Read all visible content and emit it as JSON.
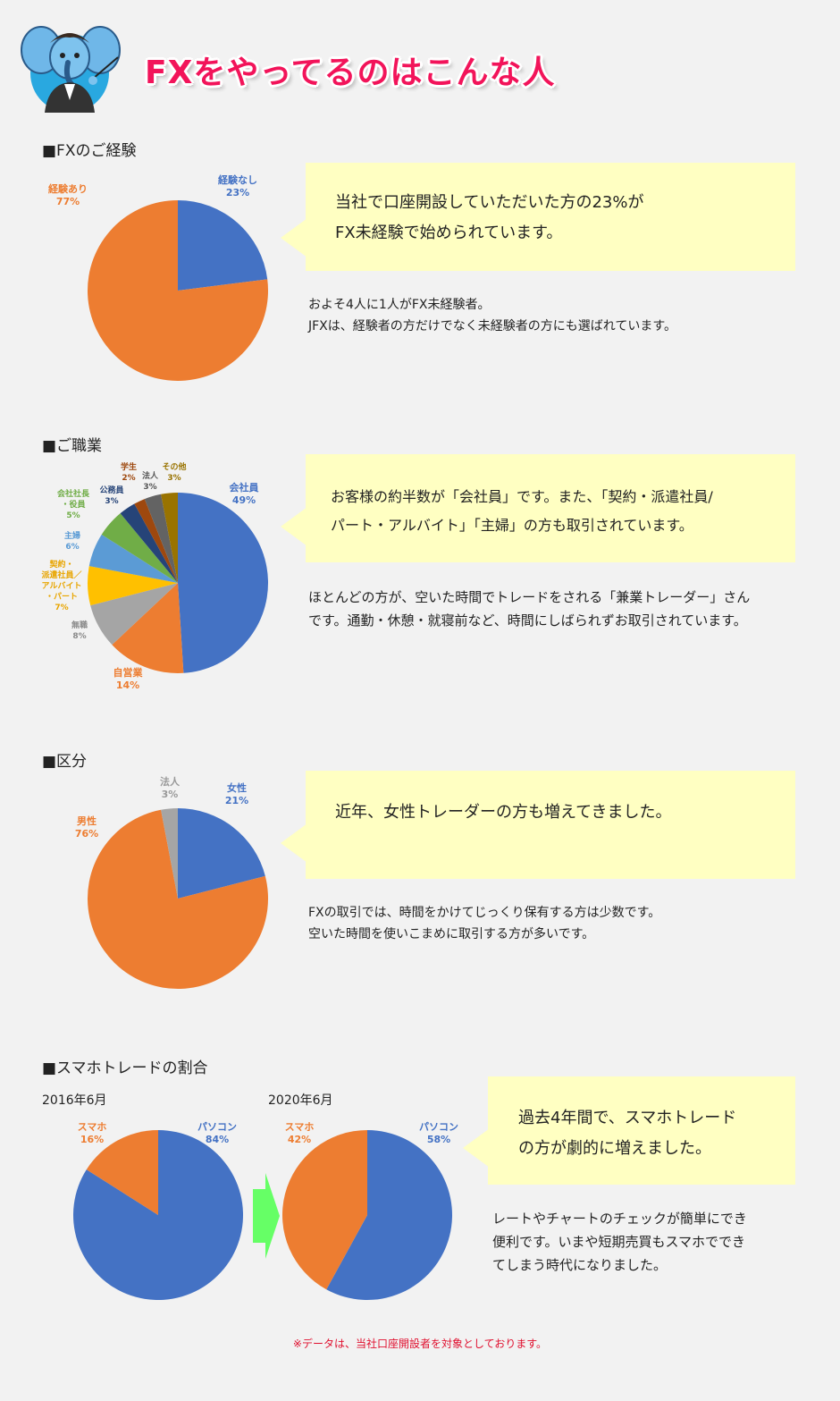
{
  "page": {
    "title": "FXをやってるのはこんな人",
    "footnote": "※データは、当社口座開設者を対象としております。"
  },
  "colors": {
    "blue": "#4472c4",
    "orange": "#ed7d31",
    "gray": "#a5a5a5",
    "yellow": "#ffc000",
    "lightblue": "#5b9bd5",
    "green": "#70ad47",
    "navy": "#264478",
    "brown": "#9e480e",
    "darkgray": "#636363",
    "olive": "#997300",
    "callout": "#ffffc2",
    "arrow": "#66ff66"
  },
  "sections": {
    "experience": {
      "heading": "■FXのご経験",
      "callout": [
        "当社で口座開設していただいた方の23%が",
        "FX未経験で始められています。"
      ],
      "body": [
        "およそ4人に1人がFX未経験者。",
        "JFXは、経験者の方だけでなく未経験者の方にも選ばれています。"
      ]
    },
    "occupation": {
      "heading": "■ご職業",
      "callout": [
        "お客様の約半数が「会社員」です。また、「契約・派遣社員/",
        "パート・アルバイト」「主婦」の方も取引されています。"
      ],
      "body": [
        "ほとんどの方が、空いた時間でトレードをされる「兼業トレーダー」さん",
        "です。通勤・休憩・就寝前など、時間にしばられずお取引されています。"
      ]
    },
    "category": {
      "heading": "■区分",
      "callout": [
        "近年、女性トレーダーの方も増えてきました。"
      ],
      "body": [
        "FXの取引では、時間をかけてじっくり保有する方は少数です。",
        "空いた時間を使いこまめに取引する方が多いです。"
      ]
    },
    "smartphone": {
      "heading": "■スマホトレードの割合",
      "callout": [
        "過去4年間で、スマホトレード",
        "の方が劇的に増えました。"
      ],
      "body": [
        "レートやチャートのチェックが簡単にでき",
        "便利です。いまや短期売買もスマホででき",
        "てしまう時代になりました。"
      ]
    }
  },
  "chart_data": [
    {
      "type": "pie",
      "title": "",
      "slices": [
        {
          "label": "経験なし",
          "value": 23,
          "pct": "23%",
          "color": "#4472c4"
        },
        {
          "label": "経験あり",
          "value": 77,
          "pct": "77%",
          "color": "#ed7d31"
        }
      ]
    },
    {
      "type": "pie",
      "title": "",
      "slices": [
        {
          "label": "会社員",
          "value": 49,
          "pct": "49%",
          "color": "#4472c4"
        },
        {
          "label": "自営業",
          "value": 14,
          "pct": "14%",
          "color": "#ed7d31"
        },
        {
          "label": "無職",
          "value": 8,
          "pct": "8%",
          "color": "#a5a5a5"
        },
        {
          "label": "契約・派遣社員／アルバイト・パート",
          "value": 7,
          "pct": "7%",
          "color": "#ffc000"
        },
        {
          "label": "主婦",
          "value": 6,
          "pct": "6%",
          "color": "#5b9bd5"
        },
        {
          "label": "会社社長・役員",
          "value": 5,
          "pct": "5%",
          "color": "#70ad47"
        },
        {
          "label": "公務員",
          "value": 3,
          "pct": "3%",
          "color": "#264478"
        },
        {
          "label": "学生",
          "value": 2,
          "pct": "2%",
          "color": "#9e480e"
        },
        {
          "label": "法人",
          "value": 3,
          "pct": "3%",
          "color": "#636363"
        },
        {
          "label": "その他",
          "value": 3,
          "pct": "3%",
          "color": "#997300"
        }
      ]
    },
    {
      "type": "pie",
      "title": "",
      "slices": [
        {
          "label": "女性",
          "value": 21,
          "pct": "21%",
          "color": "#4472c4"
        },
        {
          "label": "男性",
          "value": 76,
          "pct": "76%",
          "color": "#ed7d31"
        },
        {
          "label": "法人",
          "value": 3,
          "pct": "3%",
          "color": "#a5a5a5"
        }
      ]
    },
    {
      "type": "pie",
      "title": "2016年6月",
      "slices": [
        {
          "label": "パソコン",
          "value": 84,
          "pct": "84%",
          "color": "#4472c4"
        },
        {
          "label": "スマホ",
          "value": 16,
          "pct": "16%",
          "color": "#ed7d31"
        }
      ]
    },
    {
      "type": "pie",
      "title": "2020年6月",
      "slices": [
        {
          "label": "パソコン",
          "value": 58,
          "pct": "58%",
          "color": "#4472c4"
        },
        {
          "label": "スマホ",
          "value": 42,
          "pct": "42%",
          "color": "#ed7d31"
        }
      ]
    }
  ]
}
